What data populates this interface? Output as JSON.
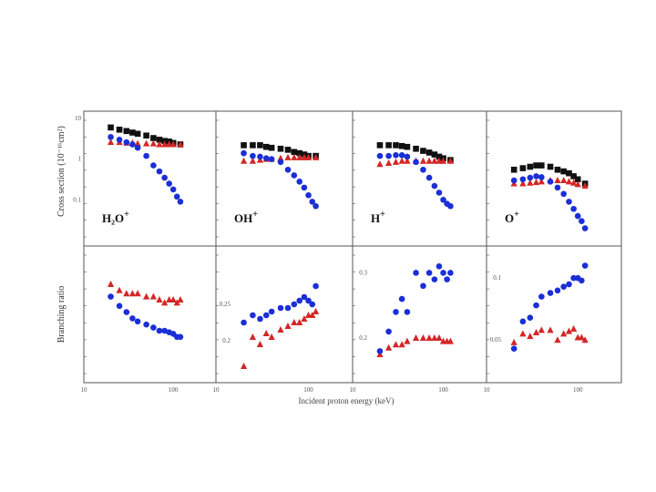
{
  "colors": {
    "black": "#111111",
    "red": "#d42626",
    "blue": "#1a2fd6",
    "axis": "#555555"
  },
  "labels": {
    "ylabel_top": "Cross section (10⁻¹⁶cm²)",
    "ylabel_bottom": "Branching ratio",
    "xlabel": "Incident proton energy (keV)"
  },
  "chart_data": [
    {
      "type": "scatter",
      "panel": "H2O+",
      "row": "cross-section",
      "log_y": true,
      "ion_main": "H₂O",
      "ion_sup": "+",
      "xlim": [
        10,
        300
      ],
      "ylim": [
        0.01,
        10
      ],
      "y_ticks": [
        "10",
        "1",
        "0.1"
      ],
      "x_ticks": [
        "10",
        "100"
      ],
      "series": [
        {
          "name": "total",
          "marker": "square",
          "color": "black",
          "x": [
            20,
            25,
            30,
            35,
            40,
            50,
            60,
            70,
            80,
            90,
            100,
            120
          ],
          "y": [
            6.0,
            5.3,
            4.9,
            4.5,
            4.2,
            3.8,
            3.3,
            3.0,
            2.8,
            2.7,
            2.5,
            2.3
          ]
        },
        {
          "name": "red-series",
          "marker": "triangle",
          "color": "red",
          "x": [
            20,
            25,
            30,
            35,
            40,
            50,
            60,
            70,
            80,
            90,
            100,
            120
          ],
          "y": [
            2.6,
            2.6,
            2.5,
            2.5,
            2.4,
            2.4,
            2.4,
            2.3,
            2.3,
            2.3,
            2.3,
            2.3
          ]
        },
        {
          "name": "blue-series",
          "marker": "circle",
          "color": "blue",
          "x": [
            20,
            25,
            30,
            35,
            40,
            50,
            60,
            70,
            80,
            90,
            100,
            110,
            120
          ],
          "y": [
            3.5,
            3.0,
            2.6,
            2.3,
            1.9,
            1.2,
            0.7,
            0.5,
            0.35,
            0.25,
            0.18,
            0.12,
            0.09
          ]
        }
      ]
    },
    {
      "type": "scatter",
      "panel": "OH+",
      "row": "cross-section",
      "log_y": true,
      "ion_main": "OH",
      "ion_sup": "+",
      "xlim": [
        10,
        300
      ],
      "ylim": [
        0.01,
        10
      ],
      "x_ticks": [
        "10",
        "100"
      ],
      "series": [
        {
          "name": "total",
          "marker": "square",
          "color": "black",
          "x": [
            20,
            25,
            30,
            35,
            40,
            50,
            60,
            70,
            80,
            90,
            100,
            120
          ],
          "y": [
            2.2,
            2.2,
            2.2,
            2.0,
            1.9,
            1.8,
            1.7,
            1.5,
            1.4,
            1.3,
            1.2,
            1.2
          ]
        },
        {
          "name": "red-series",
          "marker": "triangle",
          "color": "red",
          "x": [
            20,
            25,
            30,
            35,
            40,
            50,
            60,
            70,
            80,
            90,
            100,
            120
          ],
          "y": [
            0.9,
            0.9,
            0.95,
            1.0,
            1.0,
            1.05,
            1.1,
            1.1,
            1.1,
            1.1,
            1.1,
            1.1
          ]
        },
        {
          "name": "blue-series",
          "marker": "circle",
          "color": "blue",
          "x": [
            20,
            25,
            30,
            35,
            40,
            50,
            60,
            70,
            80,
            90,
            100,
            110,
            120
          ],
          "y": [
            1.4,
            1.2,
            1.15,
            1.05,
            1.0,
            0.85,
            0.55,
            0.4,
            0.28,
            0.2,
            0.13,
            0.09,
            0.07
          ]
        }
      ]
    },
    {
      "type": "scatter",
      "panel": "H+",
      "row": "cross-section",
      "log_y": true,
      "ion_main": "H",
      "ion_sup": "+",
      "xlim": [
        10,
        300
      ],
      "ylim": [
        0.01,
        10
      ],
      "x_ticks": [
        "10",
        "100"
      ],
      "series": [
        {
          "name": "total",
          "marker": "square",
          "color": "black",
          "x": [
            20,
            25,
            30,
            35,
            40,
            50,
            60,
            70,
            80,
            90,
            100,
            120
          ],
          "y": [
            2.2,
            2.2,
            2.2,
            2.1,
            2.0,
            1.8,
            1.6,
            1.45,
            1.3,
            1.15,
            1.05,
            0.95
          ]
        },
        {
          "name": "red-series",
          "marker": "triangle",
          "color": "red",
          "x": [
            20,
            25,
            30,
            35,
            40,
            50,
            60,
            70,
            80,
            90,
            100,
            120
          ],
          "y": [
            0.75,
            0.8,
            0.85,
            0.9,
            0.9,
            0.9,
            0.9,
            0.9,
            0.9,
            0.9,
            0.9,
            0.9
          ]
        },
        {
          "name": "blue-series",
          "marker": "circle",
          "color": "blue",
          "x": [
            20,
            25,
            30,
            35,
            40,
            50,
            60,
            70,
            80,
            90,
            100,
            110,
            120
          ],
          "y": [
            1.2,
            1.2,
            1.25,
            1.25,
            1.15,
            0.85,
            0.55,
            0.35,
            0.22,
            0.15,
            0.1,
            0.08,
            0.07
          ]
        }
      ]
    },
    {
      "type": "scatter",
      "panel": "O+",
      "row": "cross-section",
      "log_y": true,
      "ion_main": "O",
      "ion_sup": "+",
      "xlim": [
        10,
        300
      ],
      "ylim": [
        0.01,
        10
      ],
      "x_ticks": [
        "10",
        "100"
      ],
      "series": [
        {
          "name": "total",
          "marker": "square",
          "color": "black",
          "x": [
            20,
            25,
            30,
            35,
            40,
            50,
            60,
            70,
            80,
            90,
            100,
            120
          ],
          "y": [
            0.55,
            0.6,
            0.65,
            0.7,
            0.7,
            0.65,
            0.55,
            0.5,
            0.45,
            0.38,
            0.32,
            0.25
          ]
        },
        {
          "name": "red-series",
          "marker": "triangle",
          "color": "red",
          "x": [
            20,
            25,
            30,
            35,
            40,
            50,
            60,
            70,
            80,
            90,
            100,
            120
          ],
          "y": [
            0.25,
            0.25,
            0.26,
            0.27,
            0.28,
            0.3,
            0.3,
            0.3,
            0.28,
            0.26,
            0.24,
            0.22
          ]
        },
        {
          "name": "blue-series",
          "marker": "circle",
          "color": "blue",
          "x": [
            20,
            25,
            30,
            35,
            40,
            50,
            60,
            70,
            80,
            90,
            100,
            110,
            120
          ],
          "y": [
            0.3,
            0.32,
            0.35,
            0.38,
            0.36,
            0.28,
            0.2,
            0.14,
            0.09,
            0.06,
            0.04,
            0.03,
            0.02
          ]
        }
      ]
    },
    {
      "type": "scatter",
      "panel": "H2O+ ratio",
      "row": "branching-ratio",
      "xlim": [
        10,
        300
      ],
      "ylim": [
        0.2,
        0.6
      ],
      "x_ticks": [
        "10",
        "100"
      ],
      "series": [
        {
          "name": "red-series",
          "marker": "triangle",
          "color": "red",
          "x": [
            20,
            25,
            30,
            35,
            40,
            50,
            60,
            70,
            80,
            90,
            100,
            110,
            120
          ],
          "y": [
            0.5,
            0.48,
            0.47,
            0.47,
            0.47,
            0.46,
            0.46,
            0.45,
            0.44,
            0.45,
            0.45,
            0.44,
            0.45
          ]
        },
        {
          "name": "blue-series",
          "marker": "circle",
          "color": "blue",
          "x": [
            20,
            25,
            30,
            35,
            40,
            50,
            60,
            70,
            80,
            90,
            100,
            110,
            120
          ],
          "y": [
            0.46,
            0.43,
            0.41,
            0.39,
            0.38,
            0.37,
            0.36,
            0.35,
            0.35,
            0.345,
            0.34,
            0.33,
            0.33
          ]
        }
      ]
    },
    {
      "type": "scatter",
      "panel": "OH+ ratio",
      "row": "branching-ratio",
      "xlim": [
        10,
        300
      ],
      "ylim": [
        0.15,
        0.32
      ],
      "y_ticks": [
        "0.25",
        "0.2"
      ],
      "x_ticks": [
        "10",
        "100"
      ],
      "series": [
        {
          "name": "red-series",
          "marker": "triangle",
          "color": "red",
          "x": [
            20,
            25,
            30,
            35,
            40,
            50,
            60,
            70,
            80,
            90,
            100,
            110,
            120
          ],
          "y": [
            0.165,
            0.205,
            0.195,
            0.21,
            0.205,
            0.215,
            0.22,
            0.225,
            0.225,
            0.23,
            0.235,
            0.235,
            0.24
          ]
        },
        {
          "name": "blue-series",
          "marker": "circle",
          "color": "blue",
          "x": [
            20,
            25,
            30,
            35,
            40,
            50,
            60,
            70,
            80,
            90,
            100,
            110,
            120
          ],
          "y": [
            0.225,
            0.235,
            0.23,
            0.235,
            0.24,
            0.245,
            0.245,
            0.25,
            0.255,
            0.26,
            0.255,
            0.25,
            0.275
          ]
        }
      ]
    },
    {
      "type": "scatter",
      "panel": "H+ ratio",
      "row": "branching-ratio",
      "xlim": [
        10,
        300
      ],
      "ylim": [
        0.14,
        0.33
      ],
      "y_ticks": [
        "0.3",
        "0.2"
      ],
      "x_ticks": [
        "10",
        "100"
      ],
      "series": [
        {
          "name": "red-series",
          "marker": "triangle",
          "color": "red",
          "x": [
            20,
            25,
            30,
            35,
            40,
            50,
            60,
            70,
            80,
            90,
            100,
            110,
            120
          ],
          "y": [
            0.175,
            0.185,
            0.19,
            0.19,
            0.195,
            0.2,
            0.2,
            0.2,
            0.2,
            0.2,
            0.195,
            0.195,
            0.195
          ]
        },
        {
          "name": "blue-series",
          "marker": "circle",
          "color": "blue",
          "x": [
            20,
            25,
            30,
            35,
            40,
            50,
            60,
            70,
            80,
            90,
            100,
            110,
            120
          ],
          "y": [
            0.18,
            0.21,
            0.24,
            0.26,
            0.24,
            0.3,
            0.28,
            0.3,
            0.29,
            0.31,
            0.3,
            0.29,
            0.3
          ]
        }
      ]
    },
    {
      "type": "scatter",
      "panel": "O+ ratio",
      "row": "branching-ratio",
      "xlim": [
        10,
        300
      ],
      "ylim": [
        0.02,
        0.12
      ],
      "y_ticks": [
        "0.1",
        "0.05"
      ],
      "x_ticks": [
        "10",
        "100"
      ],
      "series": [
        {
          "name": "red-series",
          "marker": "triangle",
          "color": "red",
          "x": [
            20,
            25,
            30,
            35,
            40,
            50,
            60,
            70,
            80,
            90,
            100,
            110,
            120
          ],
          "y": [
            0.048,
            0.055,
            0.053,
            0.056,
            0.058,
            0.058,
            0.05,
            0.055,
            0.057,
            0.059,
            0.052,
            0.052,
            0.05
          ]
        },
        {
          "name": "blue-series",
          "marker": "circle",
          "color": "blue",
          "x": [
            20,
            25,
            30,
            35,
            40,
            50,
            60,
            70,
            80,
            90,
            100,
            110,
            120
          ],
          "y": [
            0.043,
            0.065,
            0.068,
            0.078,
            0.085,
            0.088,
            0.09,
            0.093,
            0.095,
            0.1,
            0.1,
            0.098,
            0.11
          ]
        }
      ]
    }
  ]
}
